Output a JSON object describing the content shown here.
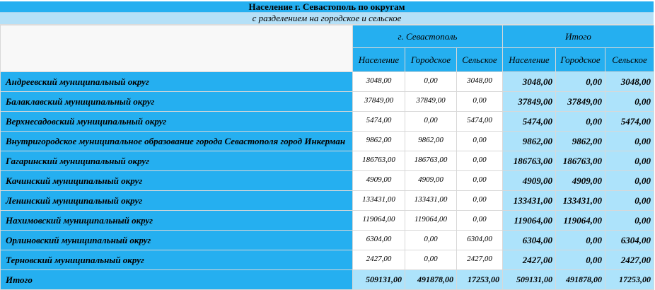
{
  "title": "Население г. Севастополь по округам",
  "subtitle": "с разделением на городское и сельское",
  "groups": [
    "г. Севастополь",
    "Итого"
  ],
  "columns": [
    "Население",
    "Городское",
    "Сельское",
    "Население",
    "Городское",
    "Сельское"
  ],
  "rows": [
    {
      "name": "Андреевский муниципальный округ",
      "v": [
        "3048,00",
        "0,00",
        "3048,00",
        "3048,00",
        "0,00",
        "3048,00"
      ]
    },
    {
      "name": "Балаклавский муниципальный округ",
      "v": [
        "37849,00",
        "37849,00",
        "0,00",
        "37849,00",
        "37849,00",
        "0,00"
      ]
    },
    {
      "name": "Верхнесадовский муниципальный округ",
      "v": [
        "5474,00",
        "0,00",
        "5474,00",
        "5474,00",
        "0,00",
        "5474,00"
      ]
    },
    {
      "name": "Внутригородское муниципальное образование города Севастополя город Инкерман",
      "v": [
        "9862,00",
        "9862,00",
        "0,00",
        "9862,00",
        "9862,00",
        "0,00"
      ]
    },
    {
      "name": "Гагаринский муниципальный округ",
      "v": [
        "186763,00",
        "186763,00",
        "0,00",
        "186763,00",
        "186763,00",
        "0,00"
      ]
    },
    {
      "name": "Качинский муниципальный округ",
      "v": [
        "4909,00",
        "4909,00",
        "0,00",
        "4909,00",
        "4909,00",
        "0,00"
      ]
    },
    {
      "name": "Ленинский муниципальный округ",
      "v": [
        "133431,00",
        "133431,00",
        "0,00",
        "133431,00",
        "133431,00",
        "0,00"
      ]
    },
    {
      "name": "Нахимовский муниципальный округ",
      "v": [
        "119064,00",
        "119064,00",
        "0,00",
        "119064,00",
        "119064,00",
        "0,00"
      ]
    },
    {
      "name": "Орлиновский муниципальный округ",
      "v": [
        "6304,00",
        "0,00",
        "6304,00",
        "6304,00",
        "0,00",
        "6304,00"
      ]
    },
    {
      "name": "Терновский муниципальный округ",
      "v": [
        "2427,00",
        "0,00",
        "2427,00",
        "2427,00",
        "0,00",
        "2427,00"
      ]
    }
  ],
  "total": {
    "name": "Итого",
    "v": [
      "509131,00",
      "491878,00",
      "17253,00",
      "509131,00",
      "491878,00",
      "17253,00"
    ]
  }
}
